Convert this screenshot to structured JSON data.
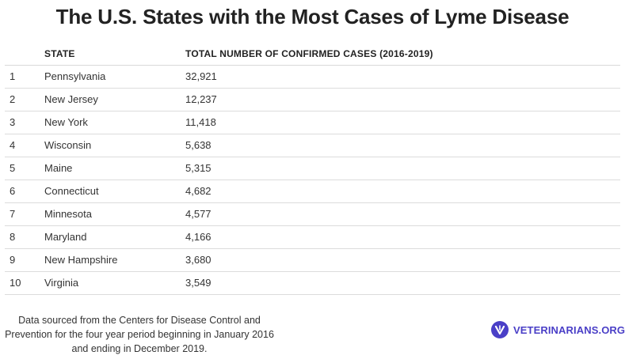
{
  "title": "The U.S. States with the Most Cases of Lyme Disease",
  "table": {
    "headers": {
      "rank": "",
      "state": "STATE",
      "cases": "TOTAL NUMBER OF CONFIRMED CASES (2016-2019)"
    },
    "rows": [
      {
        "rank": "1",
        "state": "Pennsylvania",
        "cases": "32,921"
      },
      {
        "rank": "2",
        "state": "New Jersey",
        "cases": "12,237"
      },
      {
        "rank": "3",
        "state": "New York",
        "cases": "11,418"
      },
      {
        "rank": "4",
        "state": "Wisconsin",
        "cases": "5,638"
      },
      {
        "rank": "5",
        "state": "Maine",
        "cases": "5,315"
      },
      {
        "rank": "6",
        "state": "Connecticut",
        "cases": "4,682"
      },
      {
        "rank": "7",
        "state": "Minnesota",
        "cases": "4,577"
      },
      {
        "rank": "8",
        "state": "Maryland",
        "cases": "4,166"
      },
      {
        "rank": "9",
        "state": "New Hampshire",
        "cases": "3,680"
      },
      {
        "rank": "10",
        "state": "Virginia",
        "cases": "3,549"
      }
    ]
  },
  "footnote": "Data sourced from the Centers for Disease Control and Prevention for the four year period beginning in January 2016 and ending in December 2019.",
  "brand": {
    "name": "VETERINARIANS.ORG",
    "icon": "v-logo-icon",
    "color": "#4a3fc7"
  }
}
